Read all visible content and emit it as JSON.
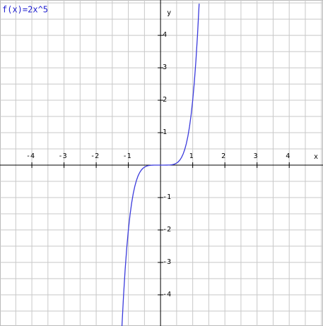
{
  "chart_data": {
    "type": "line",
    "title": "f(x)=2x^5",
    "x_label": "x",
    "y_label": "y",
    "x": [
      -1.2,
      -1.15,
      -1.1,
      -1.05,
      -1.0,
      -0.95,
      -0.9,
      -0.85,
      -0.8,
      -0.75,
      -0.7,
      -0.65,
      -0.6,
      -0.55,
      -0.5,
      -0.45,
      -0.4,
      -0.35,
      -0.3,
      -0.25,
      -0.2,
      -0.1,
      0,
      0.1,
      0.2,
      0.25,
      0.3,
      0.35,
      0.4,
      0.45,
      0.5,
      0.55,
      0.6,
      0.65,
      0.7,
      0.75,
      0.8,
      0.85,
      0.9,
      0.95,
      1.0,
      1.05,
      1.1,
      1.15,
      1.2
    ],
    "series": [
      {
        "name": "f(x)=2x^5",
        "color": "#3b3bdc",
        "values": [
          -4.977,
          -4.023,
          -3.221,
          -2.553,
          -2,
          -1.548,
          -1.181,
          -0.887,
          -0.655,
          -0.475,
          -0.336,
          -0.232,
          -0.156,
          -0.101,
          -0.063,
          -0.037,
          -0.02,
          -0.011,
          -0.005,
          -0.002,
          -0.001,
          0,
          0,
          0,
          0.001,
          0.002,
          0.005,
          0.011,
          0.02,
          0.037,
          0.063,
          0.101,
          0.156,
          0.232,
          0.336,
          0.475,
          0.655,
          0.887,
          1.181,
          1.548,
          2,
          2.553,
          3.221,
          4.023,
          4.977
        ]
      }
    ],
    "xlim": [
      -4.99,
      5.05
    ],
    "ylim": [
      -4.96,
      5.09
    ],
    "xticks": [
      -4,
      -3,
      -2,
      -1,
      1,
      2,
      3,
      4
    ],
    "yticks": [
      -4,
      -3,
      -2,
      -1,
      1,
      2,
      3,
      4
    ],
    "xgrid": [
      -4.5,
      -4,
      -3.5,
      -3,
      -2.5,
      -2,
      -1.5,
      -1,
      -0.5,
      0.5,
      1,
      1.5,
      2,
      2.5,
      3,
      3.5,
      4,
      4.5,
      5
    ],
    "ygrid": [
      -4.5,
      -4,
      -3.5,
      -3,
      -2.5,
      -2,
      -1.5,
      -1,
      -0.5,
      0.5,
      1,
      1.5,
      2,
      2.5,
      3,
      3.5,
      4,
      4.5,
      5
    ],
    "grid": true
  }
}
